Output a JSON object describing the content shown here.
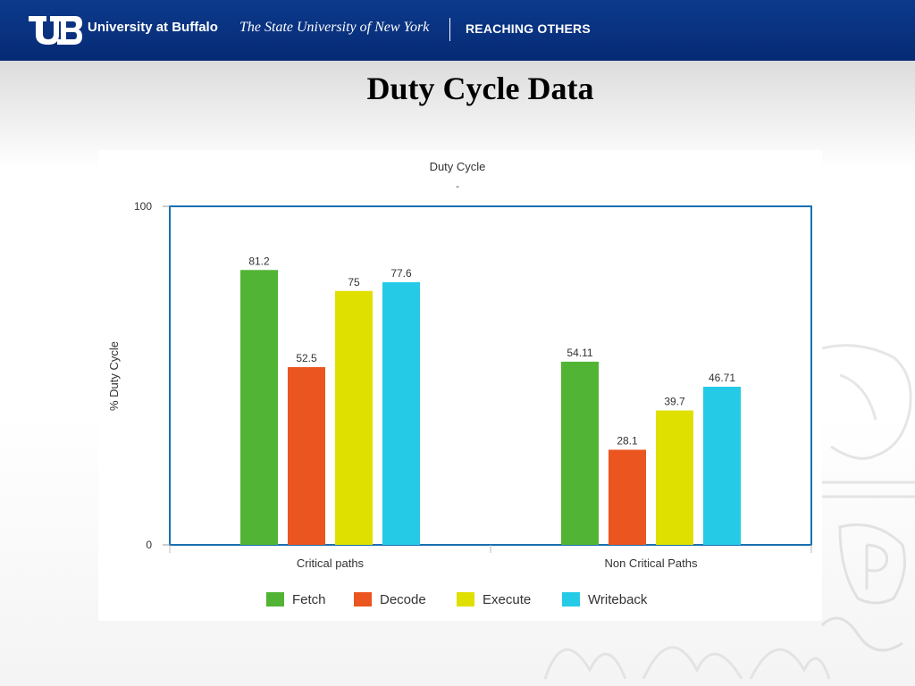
{
  "header": {
    "university": "University at Buffalo",
    "suny": "The State University of New York",
    "tagline": "REACHING OTHERS",
    "bg_color": "#0a3380"
  },
  "slide": {
    "title": "Duty Cycle Data"
  },
  "chart_data": {
    "type": "bar",
    "title": "Duty Cycle",
    "subtitle": "-",
    "xlabel": "",
    "ylabel": "% Duty Cycle",
    "ylim": [
      0,
      100
    ],
    "y_ticks": [
      "100",
      "0"
    ],
    "categories": [
      "Critical paths",
      "Non Critical Paths"
    ],
    "series": [
      {
        "name": "Fetch",
        "color": "#52b434",
        "values": [
          81.2,
          54.11
        ],
        "labels": [
          "81.2",
          "54.11"
        ]
      },
      {
        "name": "Decode",
        "color": "#eb5520",
        "values": [
          52.5,
          28.1
        ],
        "labels": [
          "52.5",
          "28.1"
        ]
      },
      {
        "name": "Execute",
        "color": "#dfe000",
        "values": [
          75,
          39.7
        ],
        "labels": [
          "75",
          "39.7"
        ]
      },
      {
        "name": "Writeback",
        "color": "#25cbe6",
        "values": [
          77.6,
          46.71
        ],
        "labels": [
          "77.6",
          "46.71"
        ]
      }
    ],
    "legend_position": "bottom",
    "grid": false,
    "frame_color": "#1a6fb0"
  }
}
